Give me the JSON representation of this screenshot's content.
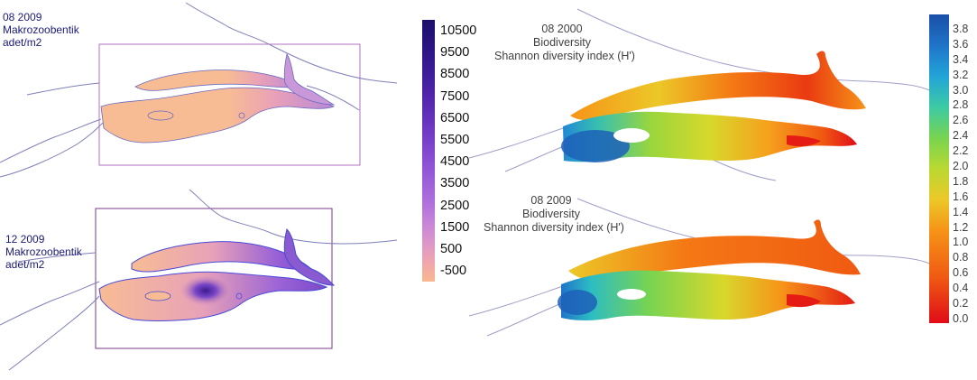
{
  "panels": {
    "top_left": {
      "line1": "08 2009",
      "line2": "Makrozoobentik",
      "line3": "adet/m2"
    },
    "bottom_left": {
      "line1": "12 2009",
      "line2": "Makrozoobentik",
      "line3": "adet/m2"
    },
    "top_right": {
      "line1": "08 2000",
      "line2": "Biodiversity",
      "line3": "Shannon diversity index (H')"
    },
    "bottom_right": {
      "line1": "08 2009",
      "line2": "Biodiversity",
      "line3": "Shannon diversity index (H')"
    }
  },
  "density_scale": {
    "labels": [
      "10500",
      "9500",
      "8500",
      "7500",
      "6500",
      "5500",
      "4500",
      "3500",
      "2500",
      "1500",
      "500",
      "-500"
    ],
    "colors": [
      "#1b0f6b",
      "#2b1481",
      "#3d1c99",
      "#5326ad",
      "#6a35c0",
      "#8148cf",
      "#985cd8",
      "#b070dc",
      "#c886d8",
      "#de98c8",
      "#f0a6ac",
      "#f8b890"
    ]
  },
  "diversity_scale": {
    "labels": [
      "3.8",
      "3.6",
      "3.4",
      "3.2",
      "3.0",
      "2.8",
      "2.6",
      "2.4",
      "2.2",
      "2.0",
      "1.8",
      "1.6",
      "1.4",
      "1.2",
      "1.0",
      "0.8",
      "0.6",
      "0.4",
      "0.2",
      "0.0"
    ],
    "colors": [
      "#1a4fa8",
      "#1d60b8",
      "#1f74c8",
      "#2088d4",
      "#22a4d8",
      "#2cbcc4",
      "#3ccaa4",
      "#58d078",
      "#78d450",
      "#9ad63c",
      "#bad832",
      "#d8d82c",
      "#ecc828",
      "#f4b020",
      "#f69418",
      "#f47814",
      "#f05a12",
      "#ea3a12",
      "#e41c14",
      "#e00c18"
    ]
  },
  "colors": {
    "label_text": "#1a1a7a",
    "panel_frame": "#7a3a8a",
    "coastline": "#8080b8",
    "lake_base": "#f8bc94"
  }
}
